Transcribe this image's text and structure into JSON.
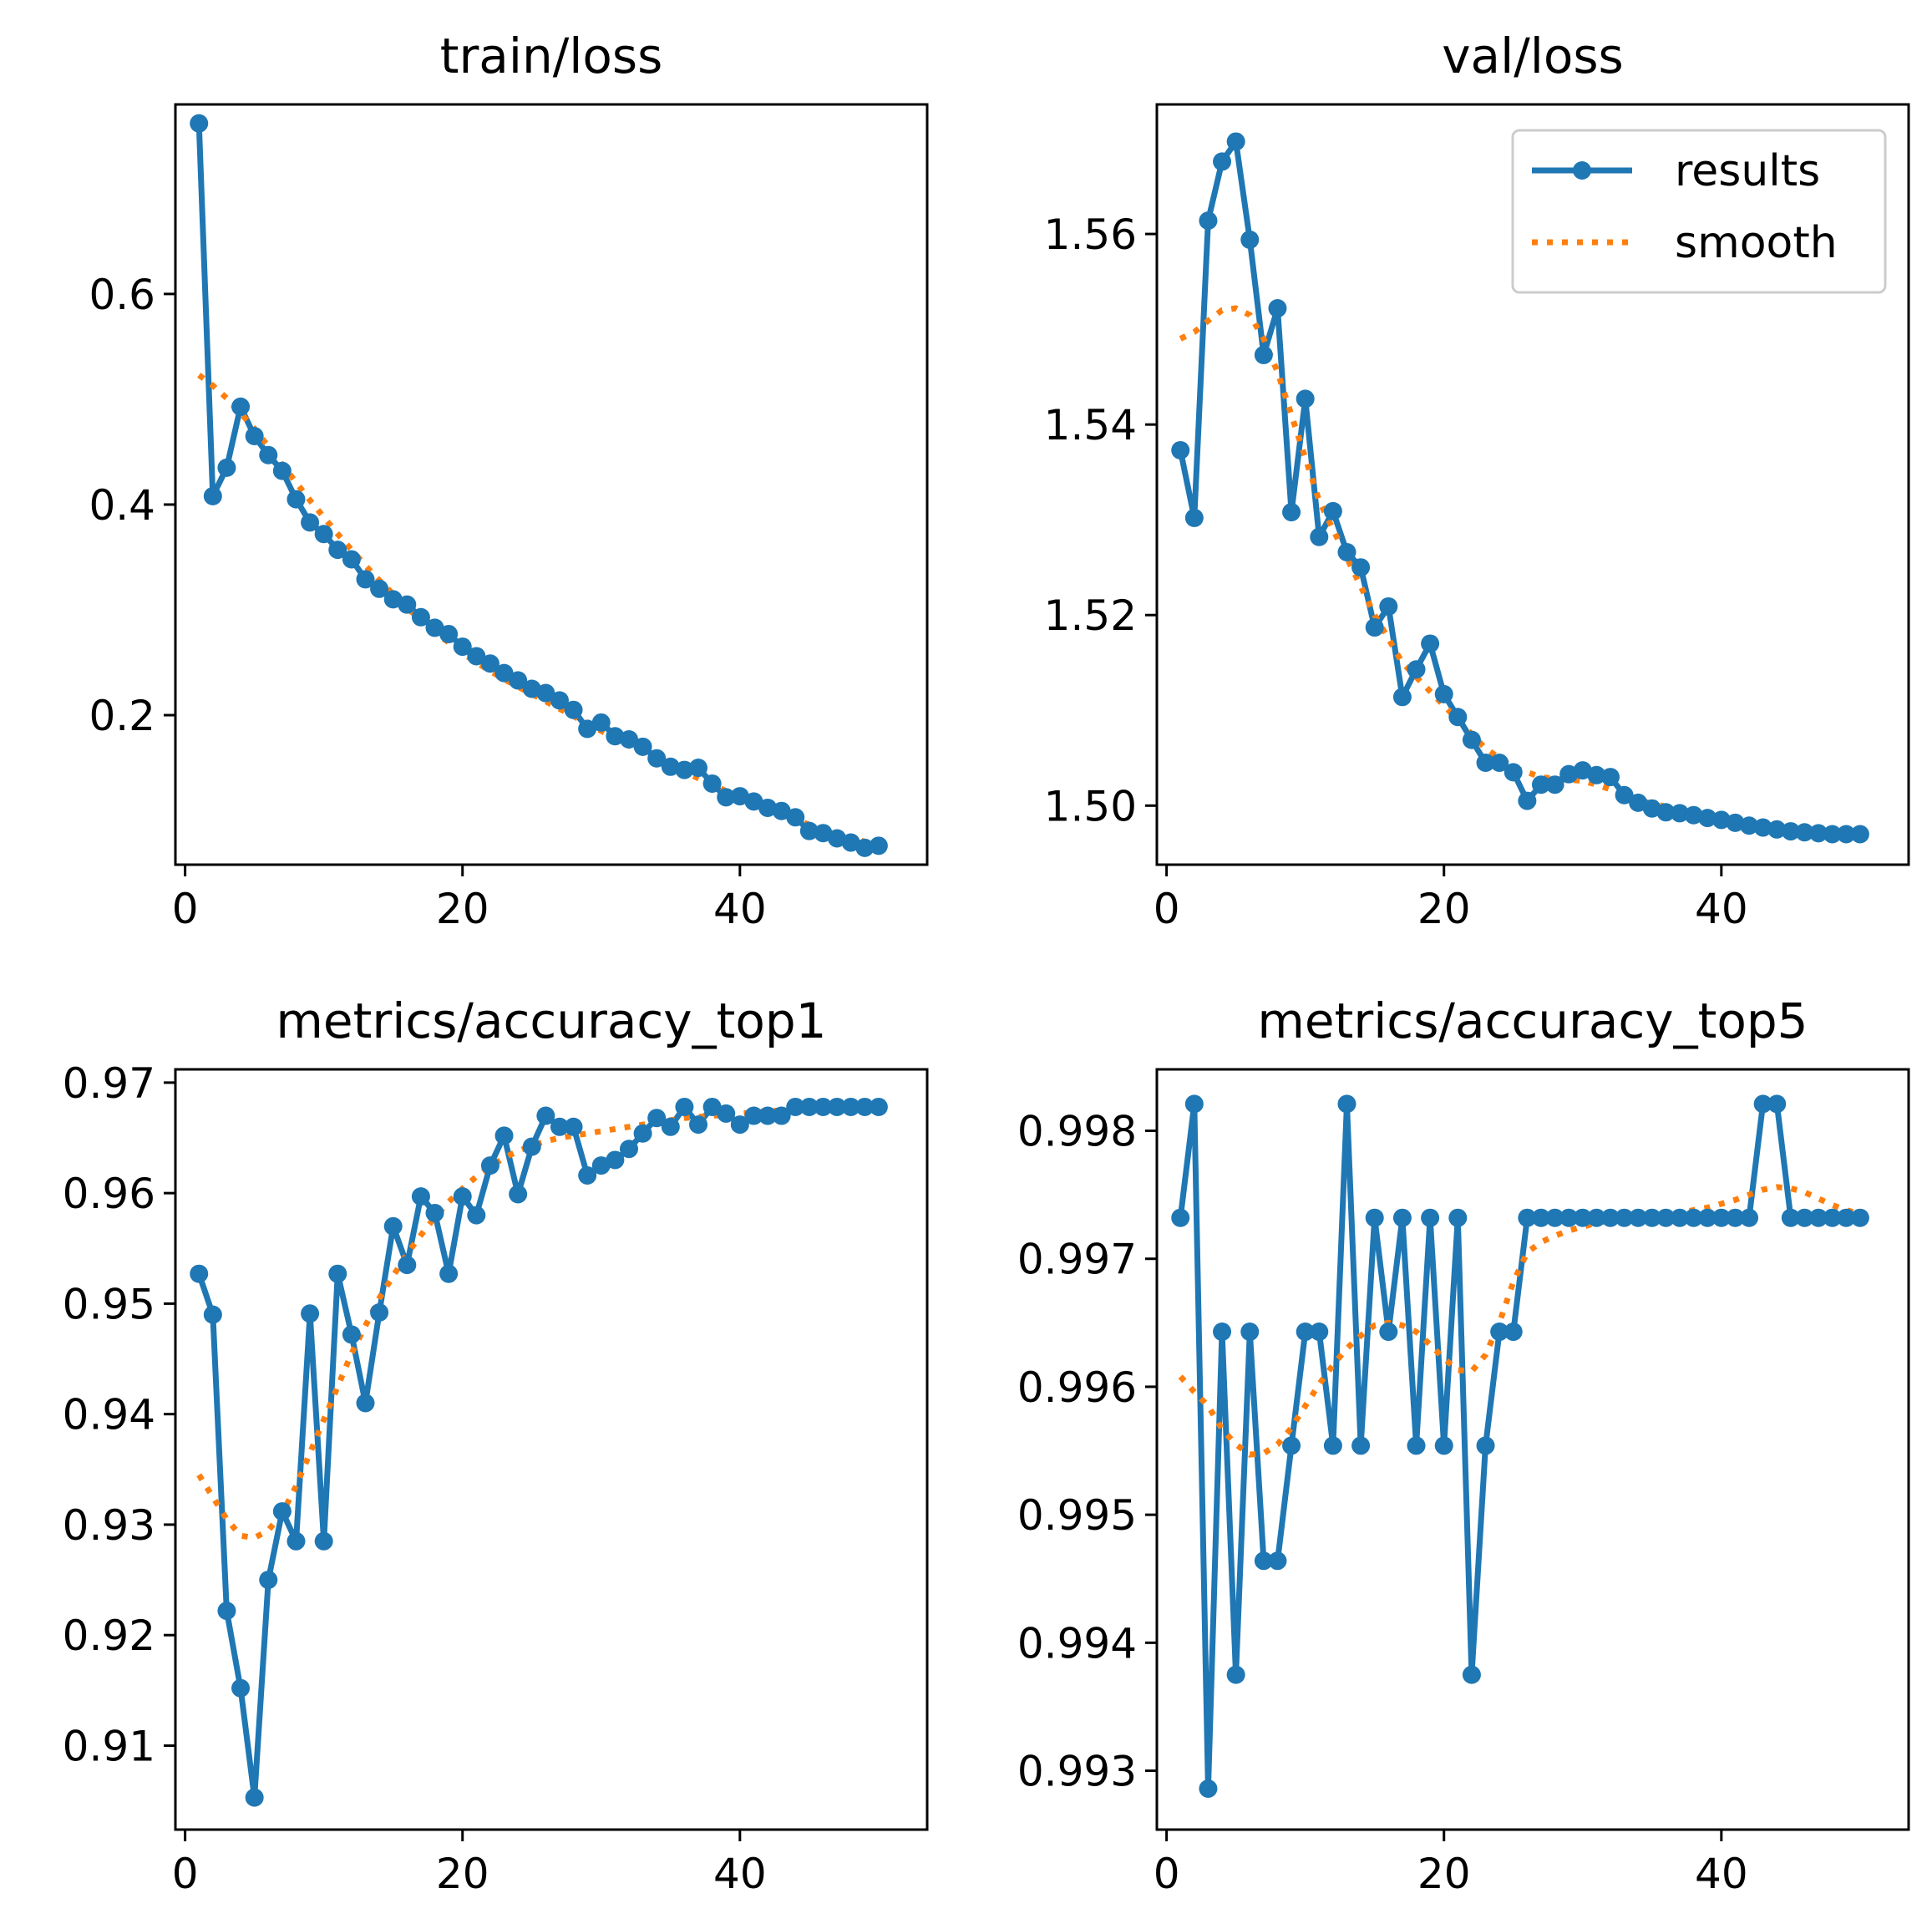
{
  "colors": {
    "results": "#1f77b4",
    "smooth": "#ff7f0e"
  },
  "legend": {
    "results_label": "results",
    "smooth_label": "smooth",
    "location": "upper-right of val/loss"
  },
  "chart_data": [
    {
      "type": "line",
      "title": "train/loss",
      "xlim": [
        -0.7,
        53.5
      ],
      "ylim": [
        0.058,
        0.78
      ],
      "xticks": [
        0,
        20,
        40
      ],
      "xtick_labels": [
        "0",
        "20",
        "40"
      ],
      "yticks": [
        0.2,
        0.4,
        0.6
      ],
      "ytick_labels": [
        "0.2",
        "0.4",
        "0.6"
      ],
      "x": [
        1,
        2,
        3,
        4,
        5,
        6,
        7,
        8,
        9,
        10,
        11,
        12,
        13,
        14,
        15,
        16,
        17,
        18,
        19,
        20,
        21,
        22,
        23,
        24,
        25,
        26,
        27,
        28,
        29,
        30,
        31,
        32,
        33,
        34,
        35,
        36,
        37,
        38,
        39,
        40,
        41,
        42,
        43,
        44,
        45,
        46,
        47,
        48,
        49,
        50
      ],
      "series": [
        {
          "name": "results",
          "values": [
            0.762,
            0.408,
            0.435,
            0.493,
            0.465,
            0.447,
            0.432,
            0.405,
            0.383,
            0.372,
            0.357,
            0.348,
            0.329,
            0.32,
            0.31,
            0.305,
            0.293,
            0.283,
            0.277,
            0.265,
            0.256,
            0.249,
            0.24,
            0.233,
            0.225,
            0.221,
            0.214,
            0.205,
            0.187,
            0.193,
            0.18,
            0.177,
            0.17,
            0.159,
            0.151,
            0.148,
            0.15,
            0.135,
            0.122,
            0.123,
            0.118,
            0.112,
            0.109,
            0.103,
            0.09,
            0.088,
            0.083,
            0.079,
            0.074,
            0.076
          ]
        },
        {
          "name": "smooth",
          "values": [
            0.523,
            0.513,
            0.501,
            0.487,
            0.472,
            0.455,
            0.438,
            0.421,
            0.404,
            0.388,
            0.372,
            0.357,
            0.342,
            0.328,
            0.315,
            0.302,
            0.29,
            0.279,
            0.269,
            0.259,
            0.25,
            0.242,
            0.234,
            0.227,
            0.22,
            0.213,
            0.206,
            0.199,
            0.192,
            0.185,
            0.178,
            0.171,
            0.164,
            0.158,
            0.152,
            0.146,
            0.14,
            0.134,
            0.128,
            0.122,
            0.116,
            0.111,
            0.106,
            0.101,
            0.096,
            0.091,
            0.087,
            0.083,
            0.08,
            0.077
          ]
        }
      ]
    },
    {
      "type": "line",
      "title": "val/loss",
      "xlim": [
        -0.7,
        53.5
      ],
      "ylim": [
        1.4938,
        1.5736
      ],
      "xticks": [
        0,
        20,
        40
      ],
      "xtick_labels": [
        "0",
        "20",
        "40"
      ],
      "yticks": [
        1.5,
        1.52,
        1.54,
        1.56
      ],
      "ytick_labels": [
        "1.50",
        "1.52",
        "1.54",
        "1.56"
      ],
      "x": [
        1,
        2,
        3,
        4,
        5,
        6,
        7,
        8,
        9,
        10,
        11,
        12,
        13,
        14,
        15,
        16,
        17,
        18,
        19,
        20,
        21,
        22,
        23,
        24,
        25,
        26,
        27,
        28,
        29,
        30,
        31,
        32,
        33,
        34,
        35,
        36,
        37,
        38,
        39,
        40,
        41,
        42,
        43,
        44,
        45,
        46,
        47,
        48,
        49,
        50
      ],
      "series": [
        {
          "name": "results",
          "values": [
            1.5373,
            1.5302,
            1.5614,
            1.5676,
            1.5697,
            1.5594,
            1.5473,
            1.5522,
            1.5308,
            1.5427,
            1.5282,
            1.5309,
            1.5266,
            1.525,
            1.5187,
            1.5209,
            1.5114,
            1.5143,
            1.517,
            1.5117,
            1.5093,
            1.5069,
            1.5045,
            1.5045,
            1.5035,
            1.5005,
            1.5022,
            1.5022,
            1.5033,
            1.5037,
            1.5032,
            1.503,
            1.5011,
            1.5003,
            1.4997,
            1.4993,
            1.4992,
            1.499,
            1.4987,
            1.4985,
            1.4982,
            1.4979,
            1.4977,
            1.4975,
            1.4973,
            1.4972,
            1.4971,
            1.497,
            1.497,
            1.497
          ]
        },
        {
          "name": "smooth",
          "values": [
            1.549,
            1.5497,
            1.5509,
            1.552,
            1.5522,
            1.5515,
            1.549,
            1.5455,
            1.541,
            1.5365,
            1.532,
            1.529,
            1.526,
            1.523,
            1.52,
            1.5175,
            1.515,
            1.5135,
            1.512,
            1.5105,
            1.509,
            1.5075,
            1.506,
            1.505,
            1.504,
            1.5035,
            1.503,
            1.5028,
            1.5027,
            1.5026,
            1.5022,
            1.5017,
            1.5011,
            1.5006,
            1.5002,
            1.4999,
            1.4996,
            1.4993,
            1.499,
            1.4987,
            1.4984,
            1.4981,
            1.4978,
            1.4976,
            1.4974,
            1.4973,
            1.4972,
            1.4971,
            1.4971,
            1.4971
          ]
        }
      ]
    },
    {
      "type": "line",
      "title": "metrics/accuracy_top1",
      "xlim": [
        -0.7,
        53.5
      ],
      "ylim": [
        0.9024,
        0.9712
      ],
      "xticks": [
        0,
        20,
        40
      ],
      "xtick_labels": [
        "0",
        "20",
        "40"
      ],
      "yticks": [
        0.91,
        0.92,
        0.93,
        0.94,
        0.95,
        0.96,
        0.97
      ],
      "ytick_labels": [
        "0.91",
        "0.92",
        "0.93",
        "0.94",
        "0.95",
        "0.96",
        "0.97"
      ],
      "x": [
        1,
        2,
        3,
        4,
        5,
        6,
        7,
        8,
        9,
        10,
        11,
        12,
        13,
        14,
        15,
        16,
        17,
        18,
        19,
        20,
        21,
        22,
        23,
        24,
        25,
        26,
        27,
        28,
        29,
        30,
        31,
        32,
        33,
        34,
        35,
        36,
        37,
        38,
        39,
        40,
        41,
        42,
        43,
        44,
        45,
        46,
        47,
        48,
        49,
        50
      ],
      "series": [
        {
          "name": "results",
          "values": [
            0.9527,
            0.949,
            0.9222,
            0.9152,
            0.9053,
            0.925,
            0.9312,
            0.9285,
            0.9491,
            0.9285,
            0.9527,
            0.9472,
            0.941,
            0.9492,
            0.957,
            0.9535,
            0.9597,
            0.9582,
            0.9527,
            0.9597,
            0.958,
            0.9625,
            0.9652,
            0.9599,
            0.9642,
            0.967,
            0.966,
            0.966,
            0.9616,
            0.9625,
            0.963,
            0.964,
            0.9654,
            0.9668,
            0.966,
            0.9678,
            0.9662,
            0.9678,
            0.9672,
            0.9662,
            0.967,
            0.967,
            0.967,
            0.9678,
            0.9678,
            0.9678,
            0.9678,
            0.9678,
            0.9678,
            0.9678
          ]
        },
        {
          "name": "smooth",
          "values": [
            0.9345,
            0.9325,
            0.9305,
            0.929,
            0.9288,
            0.9295,
            0.931,
            0.9335,
            0.9365,
            0.9395,
            0.9425,
            0.9455,
            0.948,
            0.9505,
            0.9525,
            0.9545,
            0.9562,
            0.9578,
            0.9592,
            0.9604,
            0.9615,
            0.9624,
            0.9632,
            0.9638,
            0.9643,
            0.9647,
            0.965,
            0.9652,
            0.9654,
            0.9656,
            0.9658,
            0.966,
            0.9662,
            0.9664,
            0.9666,
            0.9668,
            0.9669,
            0.967,
            0.9671,
            0.9672,
            0.9673,
            0.9674,
            0.9675,
            0.9676,
            0.9677,
            0.9677,
            0.9678,
            0.9678,
            0.9678,
            0.9678
          ]
        }
      ]
    },
    {
      "type": "line",
      "title": "metrics/accuracy_top5",
      "xlim": [
        -0.7,
        53.5
      ],
      "ylim": [
        0.99254,
        0.99848
      ],
      "xticks": [
        0,
        20,
        40
      ],
      "xtick_labels": [
        "0",
        "20",
        "40"
      ],
      "yticks": [
        0.993,
        0.994,
        0.995,
        0.996,
        0.997,
        0.998
      ],
      "ytick_labels": [
        "0.993",
        "0.994",
        "0.995",
        "0.996",
        "0.997",
        "0.998"
      ],
      "x": [
        1,
        2,
        3,
        4,
        5,
        6,
        7,
        8,
        9,
        10,
        11,
        12,
        13,
        14,
        15,
        16,
        17,
        18,
        19,
        20,
        21,
        22,
        23,
        24,
        25,
        26,
        27,
        28,
        29,
        30,
        31,
        32,
        33,
        34,
        35,
        36,
        37,
        38,
        39,
        40,
        41,
        42,
        43,
        44,
        45,
        46,
        47,
        48,
        49,
        50
      ],
      "series": [
        {
          "name": "results",
          "values": [
            0.99732,
            0.99821,
            0.99286,
            0.99643,
            0.99375,
            0.99643,
            0.99464,
            0.99464,
            0.99554,
            0.99643,
            0.99643,
            0.99554,
            0.99821,
            0.99554,
            0.99732,
            0.99643,
            0.99732,
            0.99554,
            0.99732,
            0.99554,
            0.99732,
            0.99375,
            0.99554,
            0.99643,
            0.99643,
            0.99732,
            0.99732,
            0.99732,
            0.99732,
            0.99732,
            0.99732,
            0.99732,
            0.99732,
            0.99732,
            0.99732,
            0.99732,
            0.99732,
            0.99732,
            0.99732,
            0.99732,
            0.99732,
            0.99732,
            0.99821,
            0.99821,
            0.99732,
            0.99732,
            0.99732,
            0.99732,
            0.99732,
            0.99732
          ]
        },
        {
          "name": "smooth",
          "values": [
            0.99608,
            0.99596,
            0.99585,
            0.99567,
            0.99555,
            0.99547,
            0.99548,
            0.99555,
            0.99568,
            0.99585,
            0.99602,
            0.99617,
            0.9963,
            0.9964,
            0.99648,
            0.9965,
            0.99648,
            0.99643,
            0.99633,
            0.99622,
            0.99613,
            0.99612,
            0.99625,
            0.9965,
            0.99682,
            0.99705,
            0.99713,
            0.99718,
            0.99722,
            0.99725,
            0.99728,
            0.9973,
            0.99731,
            0.99732,
            0.99733,
            0.99734,
            0.99736,
            0.99738,
            0.9974,
            0.99743,
            0.99746,
            0.9975,
            0.99754,
            0.99756,
            0.99755,
            0.99752,
            0.99747,
            0.99742,
            0.99738,
            0.99735
          ]
        }
      ]
    }
  ]
}
